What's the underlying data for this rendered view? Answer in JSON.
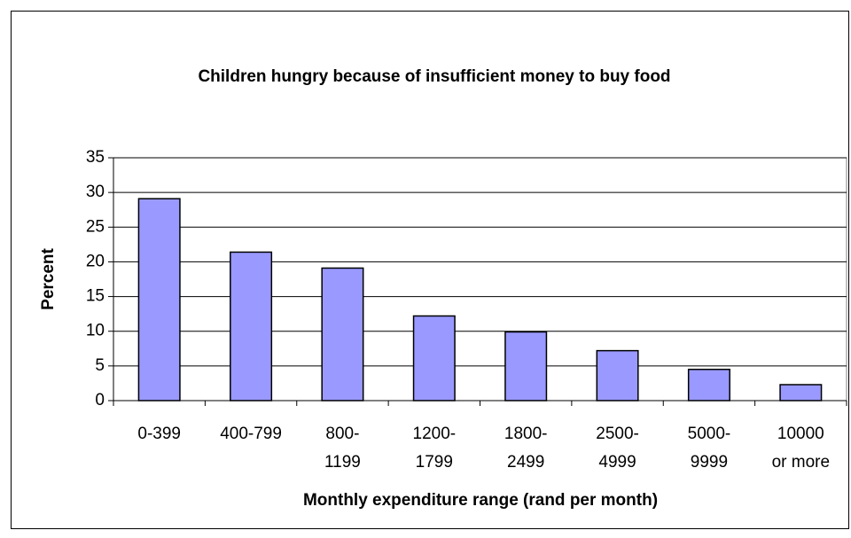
{
  "chart_data": {
    "type": "bar",
    "title": "Children hungry because of insufficient money to buy food",
    "x_label": "Monthly expenditure range (rand per month)",
    "y_label": "Percent",
    "categories": [
      "0-399",
      "400-799",
      "800-1199",
      "1200-1799",
      "1800-2499",
      "2500-4999",
      "5000-9999",
      "10000 or more"
    ],
    "values": [
      29.1,
      21.4,
      19.1,
      12.2,
      9.9,
      7.2,
      4.5,
      2.3
    ],
    "color": "#9999ff",
    "ylim": [
      0,
      35
    ],
    "yticks": [
      0,
      5,
      10,
      15,
      20,
      25,
      30,
      35
    ],
    "grid": true
  }
}
